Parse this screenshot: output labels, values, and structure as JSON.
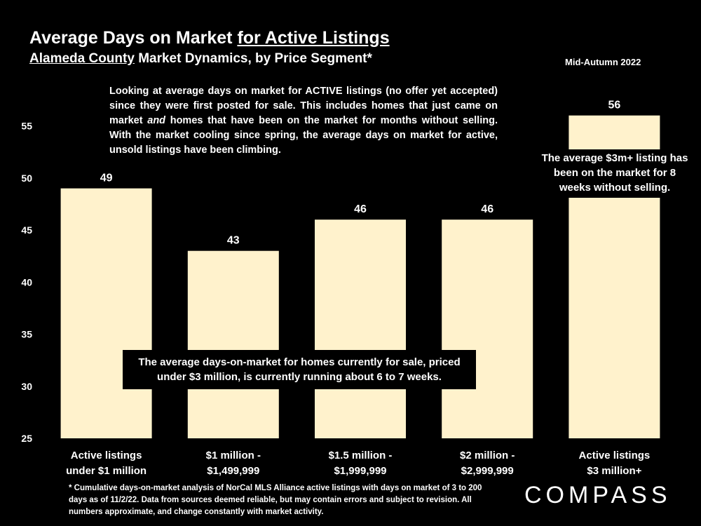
{
  "header": {
    "title_prefix": "Average Days on Market ",
    "title_underlined": "for Active Listings",
    "subtitle_underlined": "Alameda County",
    "subtitle_rest": " Market Dynamics, by Price Segment*",
    "period": "Mid-Autumn 2022"
  },
  "annotations": {
    "top_part1": "Looking at average days on market for ACTIVE listings (no offer yet accepted) since they were first posted for sale. This includes homes that just came on market ",
    "top_em": "and",
    "top_part2": " homes that have been on the market for months without selling. With the market cooling since spring, the average days on market for active, unsold listings have been climbing.",
    "right_box": "The average $3m+ listing has been on the market for 8 weeks without selling.",
    "middle_box": "The average days-on-market for homes currently for sale, priced under $3 million, is currently running about 6 to 7 weeks."
  },
  "footnote": "* Cumulative days-on-market analysis of NorCal MLS Alliance active listings with days on market of 3 to 200 days as of 11/2/22. Data from sources deemed reliable, but may contain errors and subject to revision. All numbers approximate, and change constantly with market activity.",
  "logo": "COMPASS",
  "colors": {
    "bar": "#fff2cc",
    "background": "#000000",
    "text": "#ffffff"
  },
  "chart_data": {
    "type": "bar",
    "title": "Average Days on Market for Active Listings",
    "categories": [
      [
        "Active listings",
        "under $1 million"
      ],
      [
        "$1 million -",
        "$1,499,999"
      ],
      [
        "$1.5 million -",
        "$1,999,999"
      ],
      [
        "$2 million -",
        "$2,999,999"
      ],
      [
        "Active listings",
        "$3 million+"
      ]
    ],
    "values": [
      49,
      43,
      46,
      46,
      56
    ],
    "ylim": [
      25,
      57
    ],
    "yticks": [
      25,
      30,
      35,
      40,
      45,
      50,
      55
    ],
    "grid": false,
    "legend": "none"
  }
}
